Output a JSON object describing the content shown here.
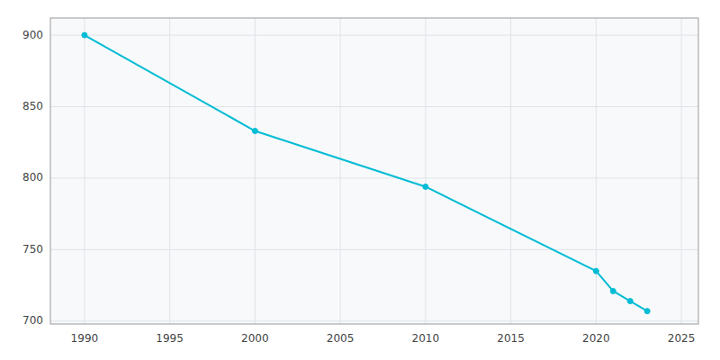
{
  "chart_data": {
    "type": "line",
    "x": [
      1990,
      2000,
      2010,
      2020,
      2021,
      2022,
      2023
    ],
    "values": [
      900,
      833,
      794,
      735,
      721,
      714,
      707
    ],
    "color": "#00bcd4",
    "marker": "circle",
    "xlim": [
      1988,
      2026
    ],
    "ylim": [
      698,
      912
    ],
    "xticks": [
      1990,
      1995,
      2000,
      2005,
      2010,
      2015,
      2020,
      2025
    ],
    "yticks": [
      700,
      750,
      800,
      850,
      900
    ],
    "grid": true
  }
}
